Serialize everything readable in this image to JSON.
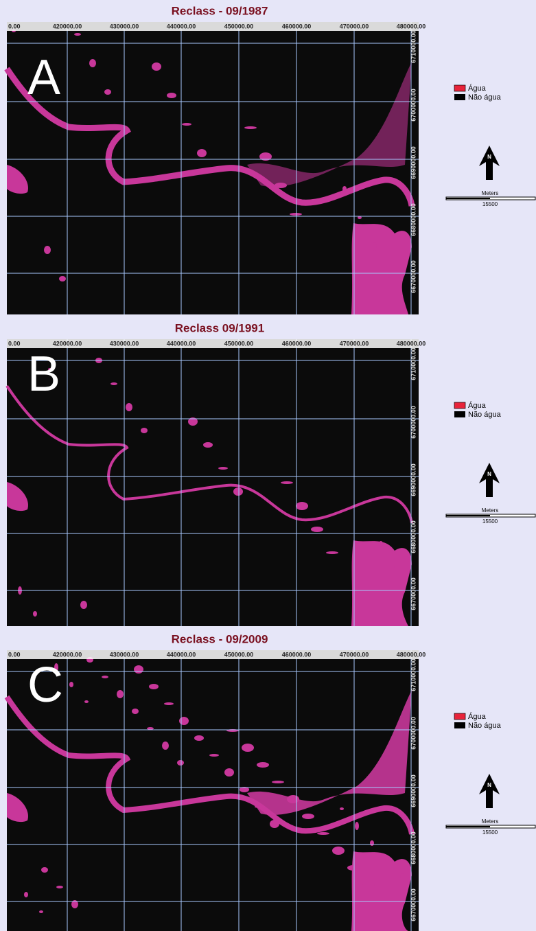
{
  "panels": [
    {
      "title": "Reclass - 09/1987",
      "letter": "A",
      "x_labels": [
        "0.00",
        "420000.00",
        "430000.00",
        "440000.00",
        "450000.00",
        "460000.00",
        "470000.00",
        "480000.00"
      ],
      "y_labels": [
        "6710000.00",
        "6700000.00",
        "6690000.00",
        "6680000.00",
        "6670000.00"
      ],
      "legend": [
        "Água",
        "Não água"
      ],
      "north": "N",
      "scale_unit": "Meters",
      "scale_value": "15500"
    },
    {
      "title": "Reclass 09/1991",
      "letter": "B",
      "x_labels": [
        "0.00",
        "420000.00",
        "430000.00",
        "440000.00",
        "450000.00",
        "460000.00",
        "470000.00",
        "480000.00"
      ],
      "y_labels": [
        "6710000.00",
        "6700000.00",
        "6690000.00",
        "6680000.00",
        "6670000.00"
      ],
      "legend": [
        "Água",
        "Não água"
      ],
      "north": "N",
      "scale_unit": "Meters",
      "scale_value": "15500"
    },
    {
      "title": "Reclass - 09/2009",
      "letter": "C",
      "x_labels": [
        "0.00",
        "420000.00",
        "430000.00",
        "440000.00",
        "450000.00",
        "460000.00",
        "470000.00",
        "480000.00"
      ],
      "y_labels": [
        "6710000.00",
        "6700000.00",
        "6690000.00",
        "6680000.00",
        "6670000.00"
      ],
      "legend": [
        "Água",
        "Não água"
      ],
      "north": "N",
      "scale_unit": "Meters",
      "scale_value": "15500"
    }
  ]
}
